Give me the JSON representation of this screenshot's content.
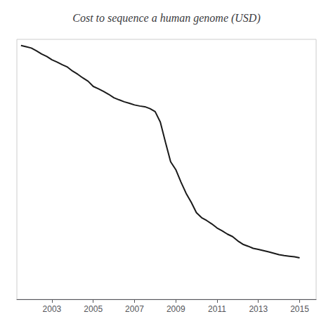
{
  "chart_data": {
    "type": "line",
    "title": "Cost to sequence a human genome (USD)",
    "x": [
      2001.5,
      2001.75,
      2002.0,
      2002.25,
      2002.5,
      2002.75,
      2003.0,
      2003.25,
      2003.5,
      2003.75,
      2004.0,
      2004.25,
      2004.5,
      2004.75,
      2005.0,
      2005.25,
      2005.5,
      2005.75,
      2006.0,
      2006.25,
      2006.5,
      2006.75,
      2007.0,
      2007.25,
      2007.5,
      2007.75,
      2008.0,
      2008.25,
      2008.5,
      2008.75,
      2009.0,
      2009.25,
      2009.5,
      2009.75,
      2010.0,
      2010.25,
      2010.5,
      2010.75,
      2011.0,
      2011.25,
      2011.5,
      2011.75,
      2012.0,
      2012.25,
      2012.5,
      2012.75,
      2013.0,
      2013.25,
      2013.5,
      2013.75,
      2014.0,
      2014.25,
      2014.5,
      2014.75,
      2015.0
    ],
    "values": [
      95263158,
      90000000,
      85000000,
      75000000,
      65000000,
      58000000,
      50000000,
      45000000,
      40000000,
      36000000,
      30000000,
      26000000,
      22000000,
      19000000,
      15000000,
      13500000,
      12000000,
      10500000,
      9000000,
      8200000,
      7500000,
      7000000,
      6500000,
      6200000,
      6000000,
      5500000,
      4800000,
      3000000,
      1200000,
      500000,
      350000,
      200000,
      120000,
      80000,
      50000,
      40000,
      35000,
      30000,
      25000,
      22000,
      19000,
      17000,
      14000,
      12000,
      11000,
      10000,
      9500,
      9000,
      8500,
      8000,
      7500,
      7200,
      7000,
      6800,
      6500
    ],
    "color": "#1a1a1a",
    "xlim": [
      2001.3,
      2015.8
    ],
    "xticks": [
      2003,
      2005,
      2007,
      2009,
      2011,
      2013,
      2015
    ],
    "ylim": [
      1000,
      125892541.17941673
    ],
    "log": "y",
    "grid": false,
    "tick_labels": "x"
  }
}
